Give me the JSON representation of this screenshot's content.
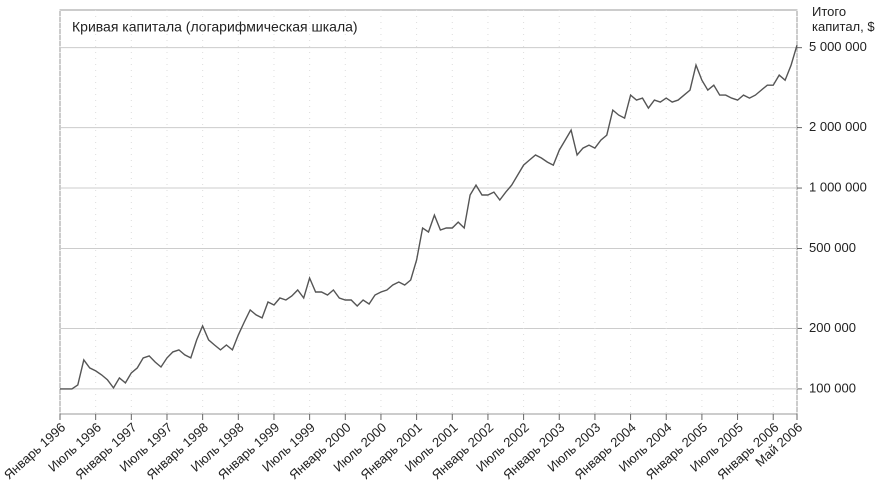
{
  "chart_data": {
    "type": "line",
    "title": "Кривая капитала (логарифмическая шкала)",
    "y_label": "Итого капитал, $",
    "x": [
      "1996-01",
      "1996-02",
      "1996-03",
      "1996-04",
      "1996-05",
      "1996-06",
      "1996-07",
      "1996-08",
      "1996-09",
      "1996-10",
      "1996-11",
      "1996-12",
      "1997-01",
      "1997-02",
      "1997-03",
      "1997-04",
      "1997-05",
      "1997-06",
      "1997-07",
      "1997-08",
      "1997-09",
      "1997-10",
      "1997-11",
      "1997-12",
      "1998-01",
      "1998-02",
      "1998-03",
      "1998-04",
      "1998-05",
      "1998-06",
      "1998-07",
      "1998-08",
      "1998-09",
      "1998-10",
      "1998-11",
      "1998-12",
      "1999-01",
      "1999-02",
      "1999-03",
      "1999-04",
      "1999-05",
      "1999-06",
      "1999-07",
      "1999-08",
      "1999-09",
      "1999-10",
      "1999-11",
      "1999-12",
      "2000-01",
      "2000-02",
      "2000-03",
      "2000-04",
      "2000-05",
      "2000-06",
      "2000-07",
      "2000-08",
      "2000-09",
      "2000-10",
      "2000-11",
      "2000-12",
      "2001-01",
      "2001-02",
      "2001-03",
      "2001-04",
      "2001-05",
      "2001-06",
      "2001-07",
      "2001-08",
      "2001-09",
      "2001-10",
      "2001-11",
      "2001-12",
      "2002-01",
      "2002-02",
      "2002-03",
      "2002-04",
      "2002-05",
      "2002-06",
      "2002-07",
      "2002-08",
      "2002-09",
      "2002-10",
      "2002-11",
      "2002-12",
      "2003-01",
      "2003-02",
      "2003-03",
      "2003-04",
      "2003-05",
      "2003-06",
      "2003-07",
      "2003-08",
      "2003-09",
      "2003-10",
      "2003-11",
      "2003-12",
      "2004-01",
      "2004-02",
      "2004-03",
      "2004-04",
      "2004-05",
      "2004-06",
      "2004-07",
      "2004-08",
      "2004-09",
      "2004-10",
      "2004-11",
      "2004-12",
      "2005-01",
      "2005-02",
      "2005-03",
      "2005-04",
      "2005-05",
      "2005-06",
      "2005-07",
      "2005-08",
      "2005-09",
      "2005-10",
      "2005-11",
      "2005-12",
      "2006-01",
      "2006-02",
      "2006-03",
      "2006-04",
      "2006-05"
    ],
    "values": [
      100000,
      100000,
      100000,
      104700,
      139400,
      127200,
      122900,
      117400,
      110900,
      101200,
      113400,
      107100,
      120100,
      127200,
      142700,
      146000,
      136200,
      128600,
      142700,
      152800,
      156300,
      147600,
      142700,
      175300,
      205800,
      175300,
      165500,
      156300,
      165500,
      156300,
      185700,
      215400,
      247200,
      233500,
      225600,
      270900,
      261700,
      283600,
      277200,
      290200,
      310800,
      283600,
      356600,
      303800,
      303800,
      293600,
      310800,
      283600,
      277200,
      277200,
      258800,
      277200,
      264800,
      293600,
      303800,
      310800,
      329100,
      340700,
      329100,
      348600,
      438400,
      632400,
      604000,
      733700,
      618000,
      632400,
      632400,
      677200,
      632400,
      923100,
      1035000,
      923100,
      923100,
      955000,
      871600,
      955000,
      1035000,
      1161000,
      1301000,
      1379000,
      1460000,
      1411000,
      1347000,
      1301000,
      1546000,
      1733000,
      1943000,
      1460000,
      1581000,
      1637000,
      1581000,
      1733000,
      1835000,
      2443000,
      2308000,
      2230000,
      2902000,
      2741000,
      2804000,
      2500000,
      2741000,
      2678000,
      2804000,
      2678000,
      2741000,
      2902000,
      3073000,
      4093000,
      3445000,
      3073000,
      3253000,
      2902000,
      2902000,
      2804000,
      2741000,
      2902000,
      2804000,
      2902000,
      3073000,
      3253000,
      3253000,
      3649000,
      3445000,
      4093000,
      5145000
    ],
    "color": "#555555",
    "log_scale": true,
    "grid": true,
    "xlim": [
      "1996-01",
      "2006-05"
    ],
    "xticks": [
      {
        "value": "1996-01",
        "label": "Январь 1996"
      },
      {
        "value": "1996-07",
        "label": "Июль 1996"
      },
      {
        "value": "1997-01",
        "label": "Январь 1997"
      },
      {
        "value": "1997-07",
        "label": "Июль 1997"
      },
      {
        "value": "1998-01",
        "label": "Январь 1998"
      },
      {
        "value": "1998-07",
        "label": "Июль 1998"
      },
      {
        "value": "1999-01",
        "label": "Январь 1999"
      },
      {
        "value": "1999-07",
        "label": "Июль 1999"
      },
      {
        "value": "2000-01",
        "label": "Январь 2000"
      },
      {
        "value": "2000-07",
        "label": "Июль 2000"
      },
      {
        "value": "2001-01",
        "label": "Январь 2001"
      },
      {
        "value": "2001-07",
        "label": "Июль 2001"
      },
      {
        "value": "2002-01",
        "label": "Январь 2002"
      },
      {
        "value": "2002-07",
        "label": "Июль 2002"
      },
      {
        "value": "2003-01",
        "label": "Январь 2003"
      },
      {
        "value": "2003-07",
        "label": "Июль 2003"
      },
      {
        "value": "2004-01",
        "label": "Январь 2004"
      },
      {
        "value": "2004-07",
        "label": "Июль 2004"
      },
      {
        "value": "2005-01",
        "label": "Январь 2005"
      },
      {
        "value": "2005-07",
        "label": "Июль 2005"
      },
      {
        "value": "2006-01",
        "label": "Январь 2006"
      },
      {
        "value": "2006-05",
        "label": "Май 2006"
      }
    ],
    "ylim": [
      75000,
      7700000
    ],
    "yticks": [
      {
        "value": 100000,
        "label": "100 000"
      },
      {
        "value": 200000,
        "label": "200 000"
      },
      {
        "value": 500000,
        "label": "500 000"
      },
      {
        "value": 1000000,
        "label": "1 000 000"
      },
      {
        "value": 2000000,
        "label": "2 000 000"
      },
      {
        "value": 5000000,
        "label": "5 000 000"
      }
    ]
  }
}
